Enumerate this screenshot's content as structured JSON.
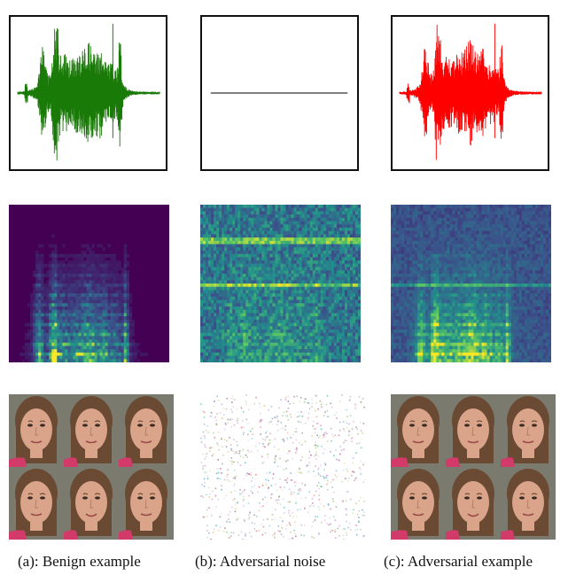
{
  "figure": {
    "columns": [
      {
        "key": "benign",
        "caption": "(a): Benign example",
        "wave_color": "#1a7a08"
      },
      {
        "key": "noise",
        "caption": "(b): Adversarial noise",
        "wave_color": "#333333"
      },
      {
        "key": "adversarial",
        "caption": "(c): Adversarial example",
        "wave_color": "#ff0000"
      }
    ],
    "colors": {
      "spectrogram_bg": "#440154",
      "spectrogram_mid": "#3b528b",
      "spectrogram_high": "#5ec962",
      "spectrogram_peak": "#fde725",
      "skin": "#d9a48a",
      "hair": "#6b4a33",
      "background_wall": "#7a7a6e",
      "shirt": "#d23a6a"
    }
  }
}
